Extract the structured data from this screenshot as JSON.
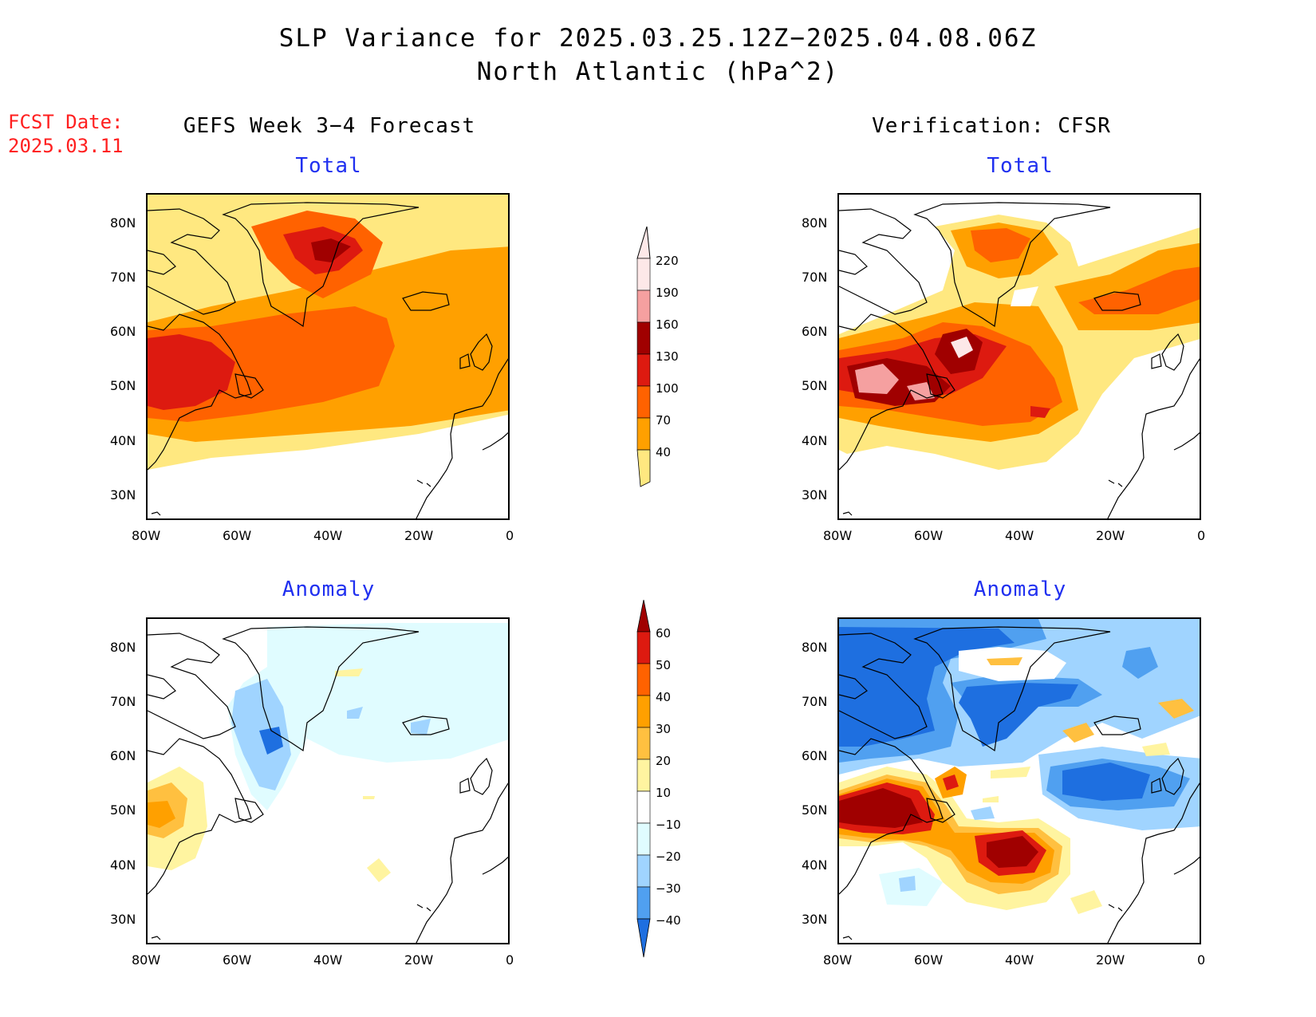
{
  "title": {
    "line1": "SLP Variance for 2025.03.25.12Z−2025.04.08.06Z",
    "line2": "North Atlantic (hPa^2)"
  },
  "fcst": {
    "label": "FCST Date:",
    "date": "2025.03.11"
  },
  "columns": {
    "left": "GEFS Week 3−4 Forecast",
    "right": "Verification: CFSR"
  },
  "panels": {
    "total_label": "Total",
    "anomaly_label": "Anomaly"
  },
  "axes": {
    "lat_ticks": [
      "80N",
      "70N",
      "60N",
      "50N",
      "40N",
      "30N"
    ],
    "lon_ticks": [
      "80W",
      "60W",
      "40W",
      "20W",
      "0"
    ]
  },
  "colorbar_total": {
    "levels": [
      "220",
      "190",
      "160",
      "130",
      "100",
      "70",
      "40"
    ],
    "colors": [
      "#fde8e8",
      "#f5a0a0",
      "#a00000",
      "#dd1a10",
      "#ff6200",
      "#ffa000",
      "#ffe880"
    ]
  },
  "colorbar_anomaly": {
    "levels": [
      "60",
      "50",
      "40",
      "30",
      "20",
      "10",
      "−10",
      "−20",
      "−30",
      "−40"
    ],
    "colors": [
      "#a00000",
      "#dd1a10",
      "#ff6200",
      "#ffa000",
      "#ffc040",
      "#fff4a0",
      "#ffffff",
      "#e0fcff",
      "#a0d4ff",
      "#50a0f0",
      "#1e6fe0"
    ]
  }
}
